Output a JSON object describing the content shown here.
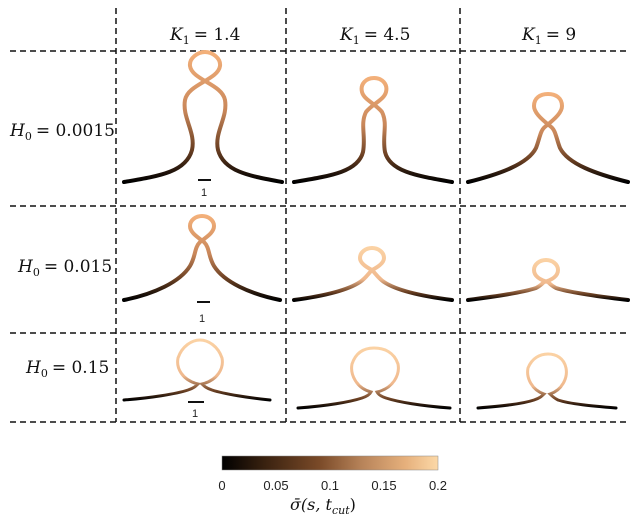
{
  "columns": [
    {
      "label_var": "K",
      "label_sub": "1",
      "label_value": "= 1.4"
    },
    {
      "label_var": "K",
      "label_sub": "1",
      "label_value": "= 4.5"
    },
    {
      "label_var": "K",
      "label_sub": "1",
      "label_value": "= 9"
    }
  ],
  "rows": [
    {
      "label_var": "H",
      "label_sub": "0",
      "label_value": "= 0.0015",
      "scale_bar_label": "1"
    },
    {
      "label_var": "H",
      "label_sub": "0",
      "label_value": "= 0.015",
      "scale_bar_label": "1"
    },
    {
      "label_var": "H",
      "label_sub": "0",
      "label_value": "= 0.15",
      "scale_bar_label": "1"
    }
  ],
  "colorbar": {
    "ticks": [
      "0",
      "0.05",
      "0.1",
      "0.15",
      "0.2"
    ],
    "tick_values": [
      0,
      0.05,
      0.1,
      0.15,
      0.2
    ],
    "range": [
      0,
      0.2
    ],
    "label_main": "σ̄(s, t",
    "label_sub": "cut",
    "label_end": ")",
    "colors": [
      "#000000",
      "#3a2210",
      "#7a4a28",
      "#b8845a",
      "#e6b07c",
      "#fcd9a8"
    ]
  }
}
